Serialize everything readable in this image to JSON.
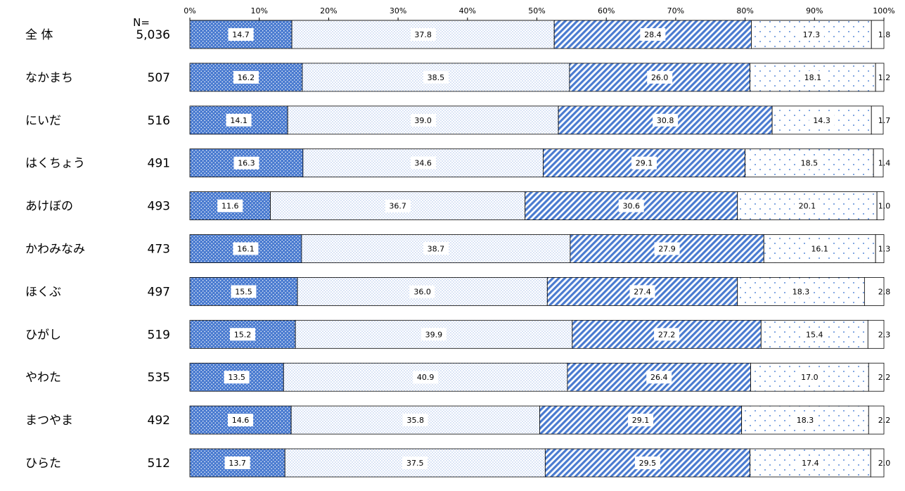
{
  "chart_data": {
    "type": "bar",
    "orientation": "horizontal",
    "stacked": true,
    "n_header": "N=",
    "x_ticks": [
      "0%",
      "10%",
      "20%",
      "30%",
      "40%",
      "50%",
      "60%",
      "70%",
      "80%",
      "90%",
      "100%"
    ],
    "xlim": [
      0,
      100
    ],
    "categories": [
      "全 体",
      "なかまち",
      "にいだ",
      "はくちょう",
      "あけぼの",
      "かわみなみ",
      "ほくぶ",
      "ひがし",
      "やわた",
      "まつやま",
      "ひらた"
    ],
    "n_values": [
      "5,036",
      "507",
      "516",
      "491",
      "493",
      "473",
      "497",
      "519",
      "535",
      "492",
      "512"
    ],
    "series": [
      {
        "values": [
          14.7,
          16.2,
          14.1,
          16.3,
          11.6,
          16.1,
          15.5,
          15.2,
          13.5,
          14.6,
          13.7
        ],
        "labels": [
          "14.7",
          "16.2",
          "14.1",
          "16.3",
          "11.6",
          "16.1",
          "15.5",
          "15.2",
          "13.5",
          "14.6",
          "13.7"
        ],
        "pattern": "dense-dots",
        "color": "#4a7bd0"
      },
      {
        "values": [
          37.8,
          38.5,
          39.0,
          34.6,
          36.7,
          38.7,
          36.0,
          39.9,
          40.9,
          35.8,
          37.5
        ],
        "labels": [
          "37.8",
          "38.5",
          "39.0",
          "34.6",
          "36.7",
          "38.7",
          "36.0",
          "39.9",
          "40.9",
          "35.8",
          "37.5"
        ],
        "pattern": "fine-dots",
        "color": "#9db9e6"
      },
      {
        "values": [
          28.4,
          26.0,
          30.8,
          29.1,
          30.6,
          27.9,
          27.4,
          27.2,
          26.4,
          29.1,
          29.5
        ],
        "labels": [
          "28.4",
          "26.0",
          "30.8",
          "29.1",
          "30.6",
          "27.9",
          "27.4",
          "27.2",
          "26.4",
          "29.1",
          "29.5"
        ],
        "pattern": "diagonal",
        "color": "#4a7bd0"
      },
      {
        "values": [
          17.3,
          18.1,
          14.3,
          18.5,
          20.1,
          16.1,
          18.3,
          15.4,
          17.0,
          18.3,
          17.4
        ],
        "labels": [
          "17.3",
          "18.1",
          "14.3",
          "18.5",
          "20.1",
          "16.1",
          "18.3",
          "15.4",
          "17.0",
          "18.3",
          "17.4"
        ],
        "pattern": "sparse-dots",
        "color": "#5b8bd8"
      },
      {
        "values": [
          1.8,
          1.2,
          1.7,
          1.4,
          1.0,
          1.3,
          2.8,
          2.3,
          2.2,
          2.2,
          2.0
        ],
        "labels": [
          "1.8",
          "1.2",
          "1.7",
          "1.4",
          "1.0",
          "1.3",
          "2.8",
          "2.3",
          "2.2",
          "2.2",
          "2.0"
        ],
        "pattern": "white",
        "color": "#ffffff"
      }
    ]
  }
}
